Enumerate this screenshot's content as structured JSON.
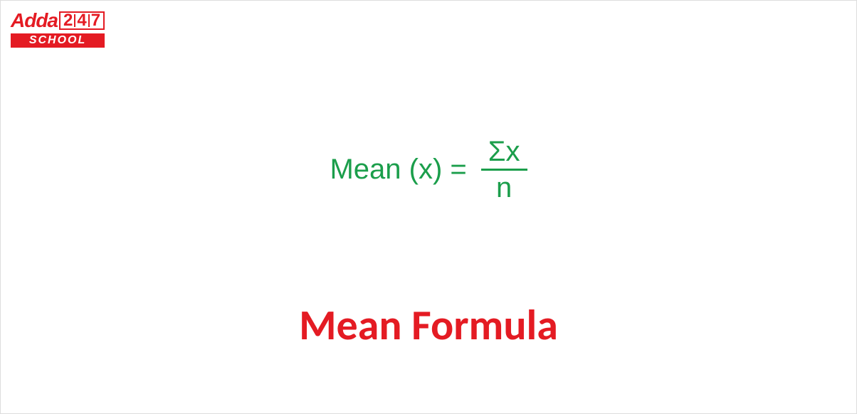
{
  "logo": {
    "text_adda": "Adda",
    "text_247_a": "2",
    "text_247_b": "4",
    "text_247_c": "7",
    "text_school": "SCHOOL",
    "color_red": "#e41b23",
    "color_white": "#ffffff"
  },
  "formula": {
    "lhs": "Mean (x) =",
    "numerator": "Σx",
    "denominator": "n",
    "color": "#1b9e4b",
    "fontsize": 40
  },
  "title": {
    "text": "Mean Formula",
    "color": "#e41b23",
    "fontsize": 60
  },
  "background_color": "#ffffff"
}
